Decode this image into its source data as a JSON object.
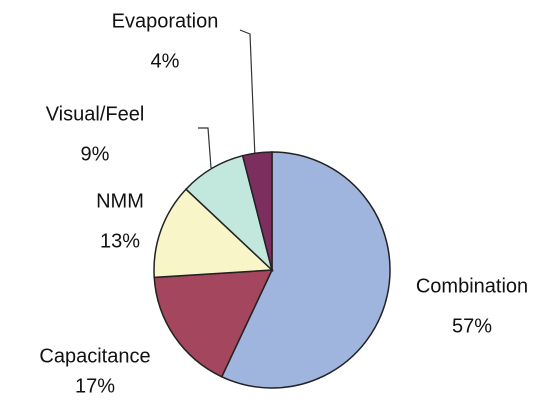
{
  "chart_data": {
    "type": "pie",
    "categories": [
      "Combination",
      "Capacitance",
      "NMM",
      "Visual/Feel",
      "Evaporation"
    ],
    "values": [
      57,
      17,
      13,
      9,
      4
    ],
    "value_labels": [
      "57%",
      "17%",
      "13%",
      "9%",
      "4%"
    ],
    "colors": [
      "#9fb5de",
      "#a3465e",
      "#f8f6c8",
      "#c2e8de",
      "#7c2f5f"
    ]
  }
}
